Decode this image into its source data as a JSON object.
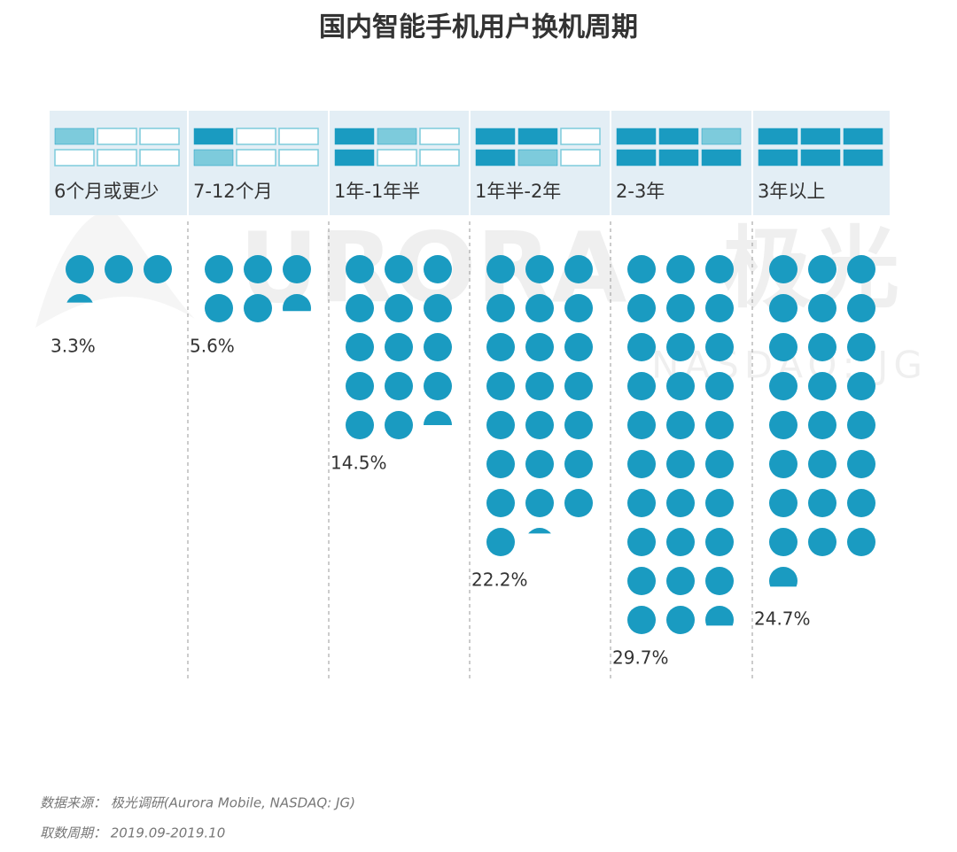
{
  "chart_data": {
    "type": "waffle",
    "title": "国内智能手机用户换机周期",
    "categories": [
      "6个月或更少",
      "7-12个月",
      "1年-1年半",
      "1年半-2年",
      "2-3年",
      "3年以上"
    ],
    "values": [
      3.3,
      5.6,
      14.5,
      22.2,
      29.7,
      24.7
    ],
    "value_labels": [
      "3.3%",
      "5.6%",
      "14.5%",
      "22.2%",
      "29.7%",
      "24.7%"
    ],
    "color": "#1a9bc1",
    "watermark": "URORA",
    "watermark_cn": "极光",
    "watermark_sub": "NASDAQ: JG",
    "source": "数据来源：  极光调研(Aurora Mobile, NASDAQ: JG)",
    "period": "取数周期：  2019.09-2019.10"
  }
}
